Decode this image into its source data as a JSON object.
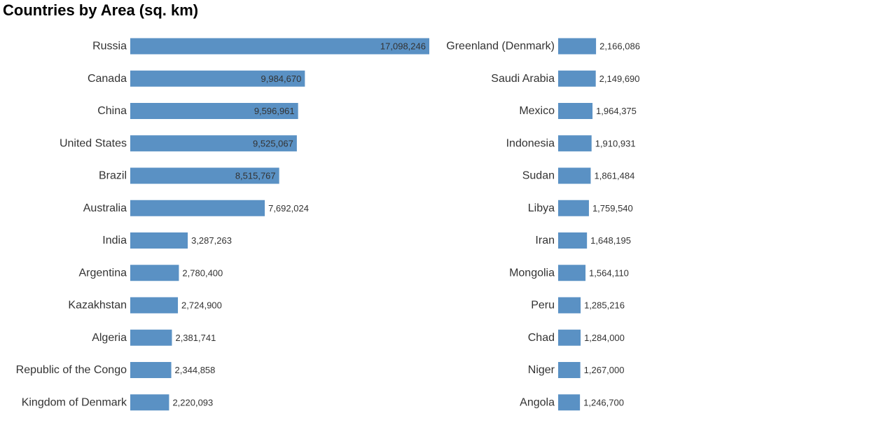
{
  "chart_data": {
    "type": "bar",
    "orientation": "horizontal",
    "title": "Countries by Area (sq. km)",
    "xlim": [
      0,
      17098246
    ],
    "grid": false,
    "colors": {
      "bar": "#5a91c4",
      "label": "#333333"
    },
    "columns": [
      {
        "categories": [
          "Russia",
          "Canada",
          "China",
          "United States",
          "Brazil",
          "Australia",
          "India",
          "Argentina",
          "Kazakhstan",
          "Algeria",
          "Republic of the Congo",
          "Kingdom of Denmark"
        ],
        "values": [
          17098246,
          9984670,
          9596961,
          9525067,
          8515767,
          7692024,
          3287263,
          2780400,
          2724900,
          2381741,
          2344858,
          2220093
        ],
        "value_labels": [
          "17,098,246",
          "9,984,670",
          "9,596,961",
          "9,525,067",
          "8,515,767",
          "7,692,024",
          "3,287,263",
          "2,780,400",
          "2,724,900",
          "2,381,741",
          "2,344,858",
          "2,220,093"
        ]
      },
      {
        "categories": [
          "Greenland (Denmark)",
          "Saudi Arabia",
          "Mexico",
          "Indonesia",
          "Sudan",
          "Libya",
          "Iran",
          "Mongolia",
          "Peru",
          "Chad",
          "Niger",
          "Angola"
        ],
        "values": [
          2166086,
          2149690,
          1964375,
          1910931,
          1861484,
          1759540,
          1648195,
          1564110,
          1285216,
          1284000,
          1267000,
          1246700
        ],
        "value_labels": [
          "2,166,086",
          "2,149,690",
          "1,964,375",
          "1,910,931",
          "1,861,484",
          "1,759,540",
          "1,648,195",
          "1,564,110",
          "1,285,216",
          "1,284,000",
          "1,267,000",
          "1,246,700"
        ]
      }
    ]
  }
}
